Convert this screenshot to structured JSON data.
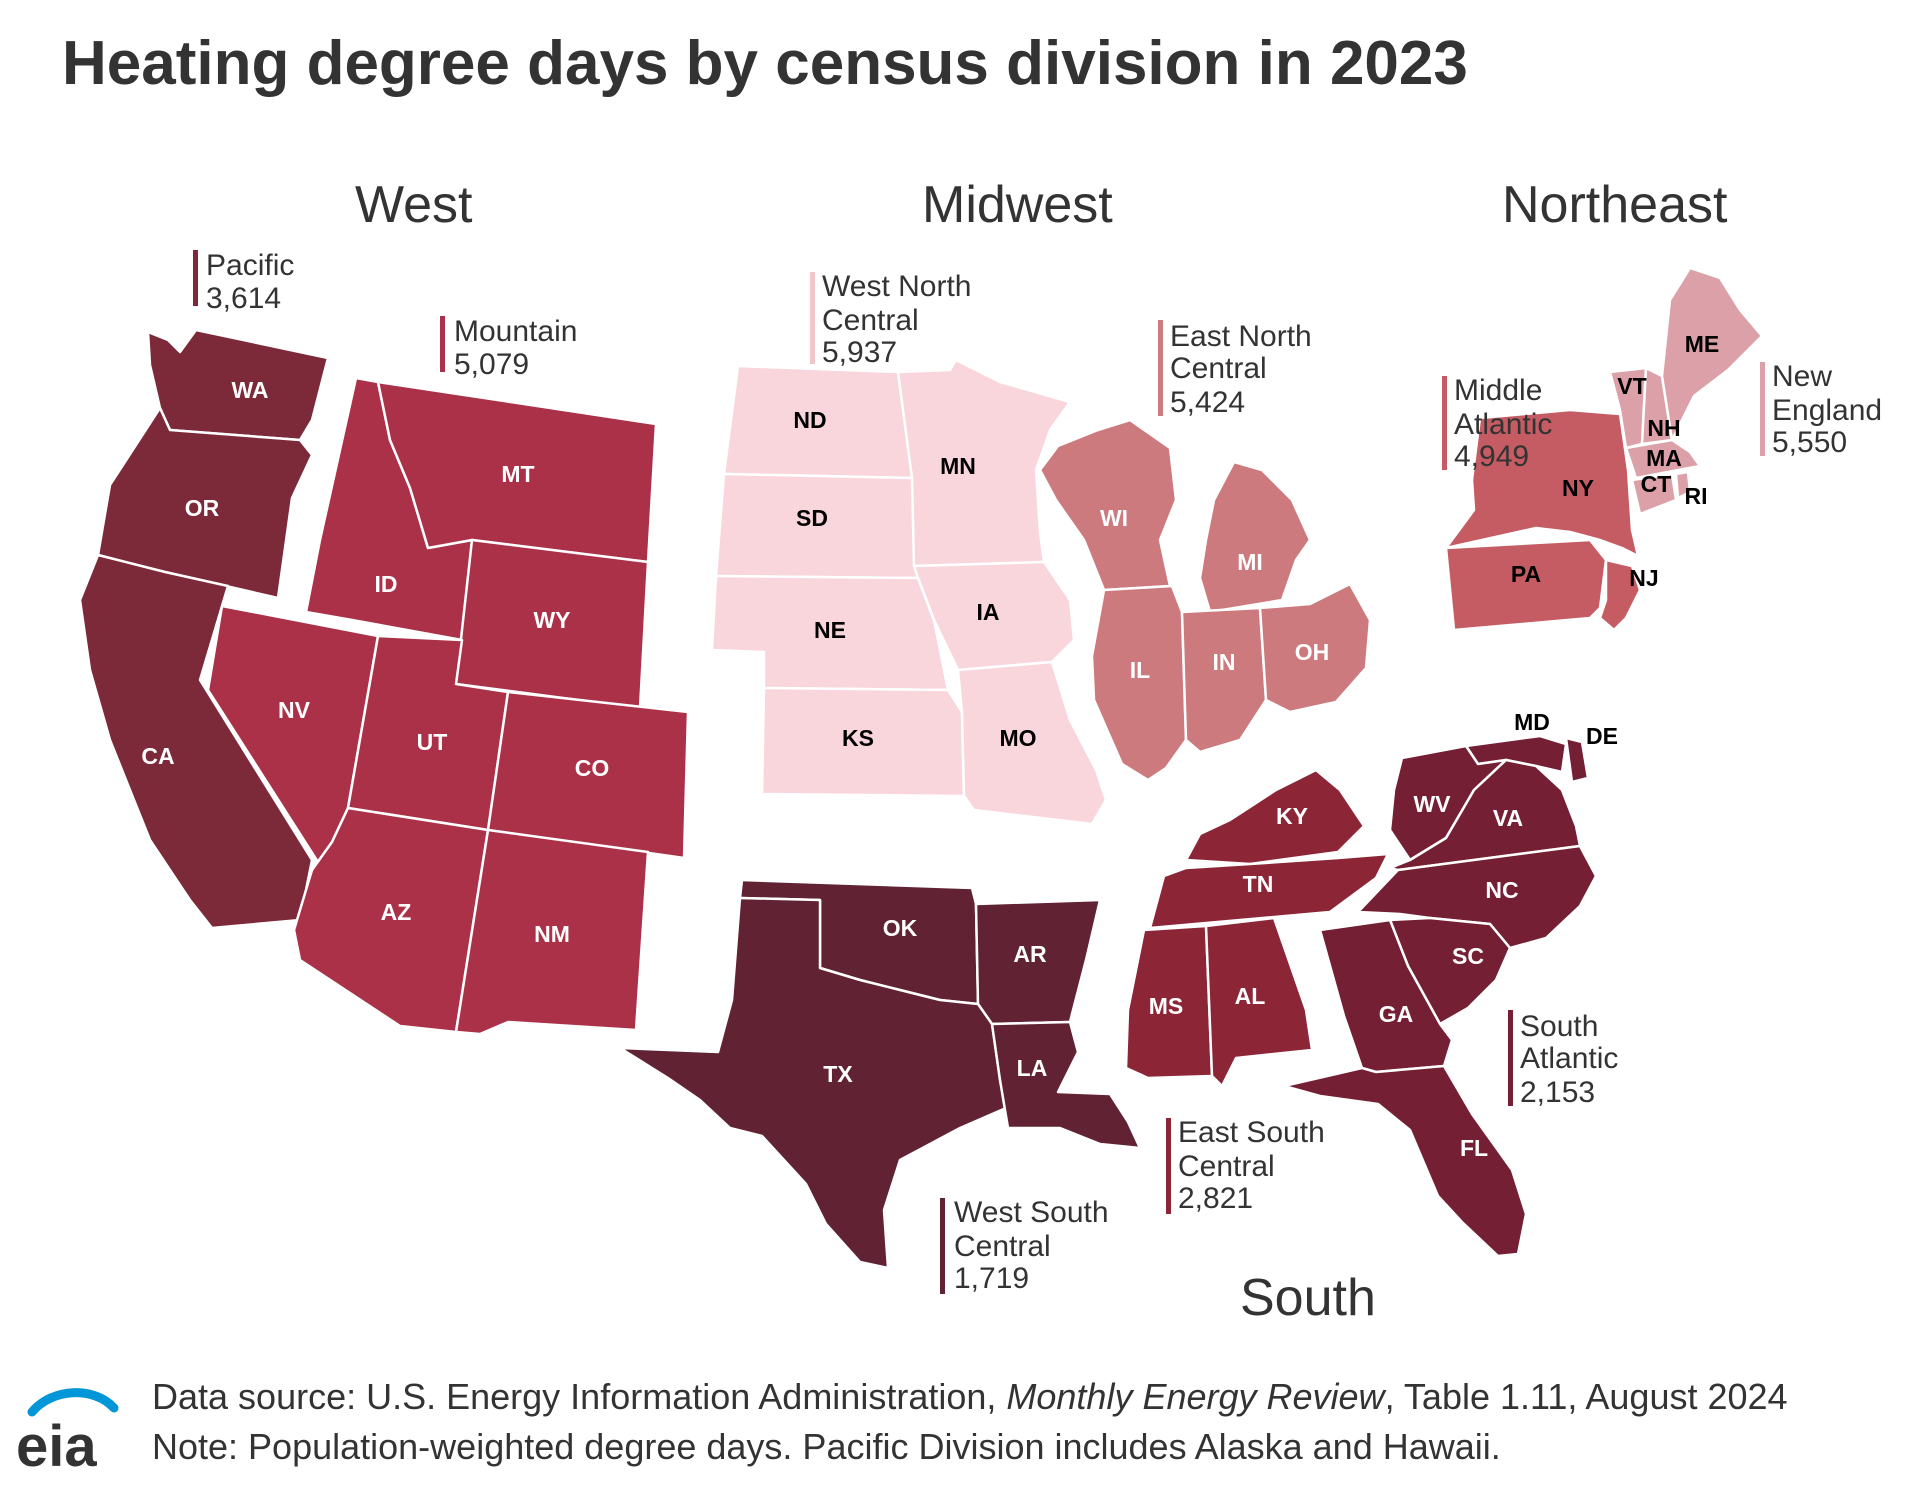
{
  "title": "Heating degree days by census division in 2023",
  "colors": {
    "pacific": "#7c2a3a",
    "mountain": "#ab3149",
    "west_north_central": "#f9d6dc",
    "east_north_central": "#cc7a7e",
    "middle_atlantic": "#c55c63",
    "new_england": "#dca0a8",
    "south_atlantic": "#741f34",
    "east_south_central": "#8c2637",
    "west_south_central": "#612333"
  },
  "regions": {
    "west": "West",
    "midwest": "Midwest",
    "northeast": "Northeast",
    "south": "South"
  },
  "divisions": {
    "pacific": {
      "name_lines": [
        "Pacific"
      ],
      "value": "3,614"
    },
    "mountain": {
      "name_lines": [
        "Mountain"
      ],
      "value": "5,079"
    },
    "west_north_central": {
      "name_lines": [
        "West North",
        "Central"
      ],
      "value": "5,937"
    },
    "east_north_central": {
      "name_lines": [
        "East North",
        "Central"
      ],
      "value": "5,424"
    },
    "middle_atlantic": {
      "name_lines": [
        "Middle",
        "Atlantic"
      ],
      "value": "4,949"
    },
    "new_england": {
      "name_lines": [
        "New",
        "England"
      ],
      "value": "5,550"
    },
    "south_atlantic": {
      "name_lines": [
        "South",
        "Atlantic"
      ],
      "value": "2,153"
    },
    "east_south_central": {
      "name_lines": [
        "East South",
        "Central"
      ],
      "value": "2,821"
    },
    "west_south_central": {
      "name_lines": [
        "West South",
        "Central"
      ],
      "value": "1,719"
    }
  },
  "states": {
    "WA": "WA",
    "OR": "OR",
    "CA": "CA",
    "ID": "ID",
    "MT": "MT",
    "WY": "WY",
    "NV": "NV",
    "UT": "UT",
    "CO": "CO",
    "AZ": "AZ",
    "NM": "NM",
    "ND": "ND",
    "SD": "SD",
    "NE": "NE",
    "KS": "KS",
    "MN": "MN",
    "IA": "IA",
    "MO": "MO",
    "WI": "WI",
    "MI": "MI",
    "IL": "IL",
    "IN": "IN",
    "OH": "OH",
    "NY": "NY",
    "PA": "PA",
    "NJ": "NJ",
    "ME": "ME",
    "VT": "VT",
    "NH": "NH",
    "MA": "MA",
    "CT": "CT",
    "RI": "RI",
    "MD": "MD",
    "DE": "DE",
    "WV": "WV",
    "VA": "VA",
    "NC": "NC",
    "SC": "SC",
    "GA": "GA",
    "FL": "FL",
    "KY": "KY",
    "TN": "TN",
    "MS": "MS",
    "AL": "AL",
    "OK": "OK",
    "AR": "AR",
    "TX": "TX",
    "LA": "LA"
  },
  "footer": {
    "source_prefix": "Data source: U.S. Energy Information Administration, ",
    "source_italic": "Monthly Energy Review",
    "source_suffix": ", Table 1.11, August 2024",
    "note": "Note: Population-weighted degree days. Pacific Division includes Alaska and Hawaii."
  },
  "logo_text": "eia"
}
